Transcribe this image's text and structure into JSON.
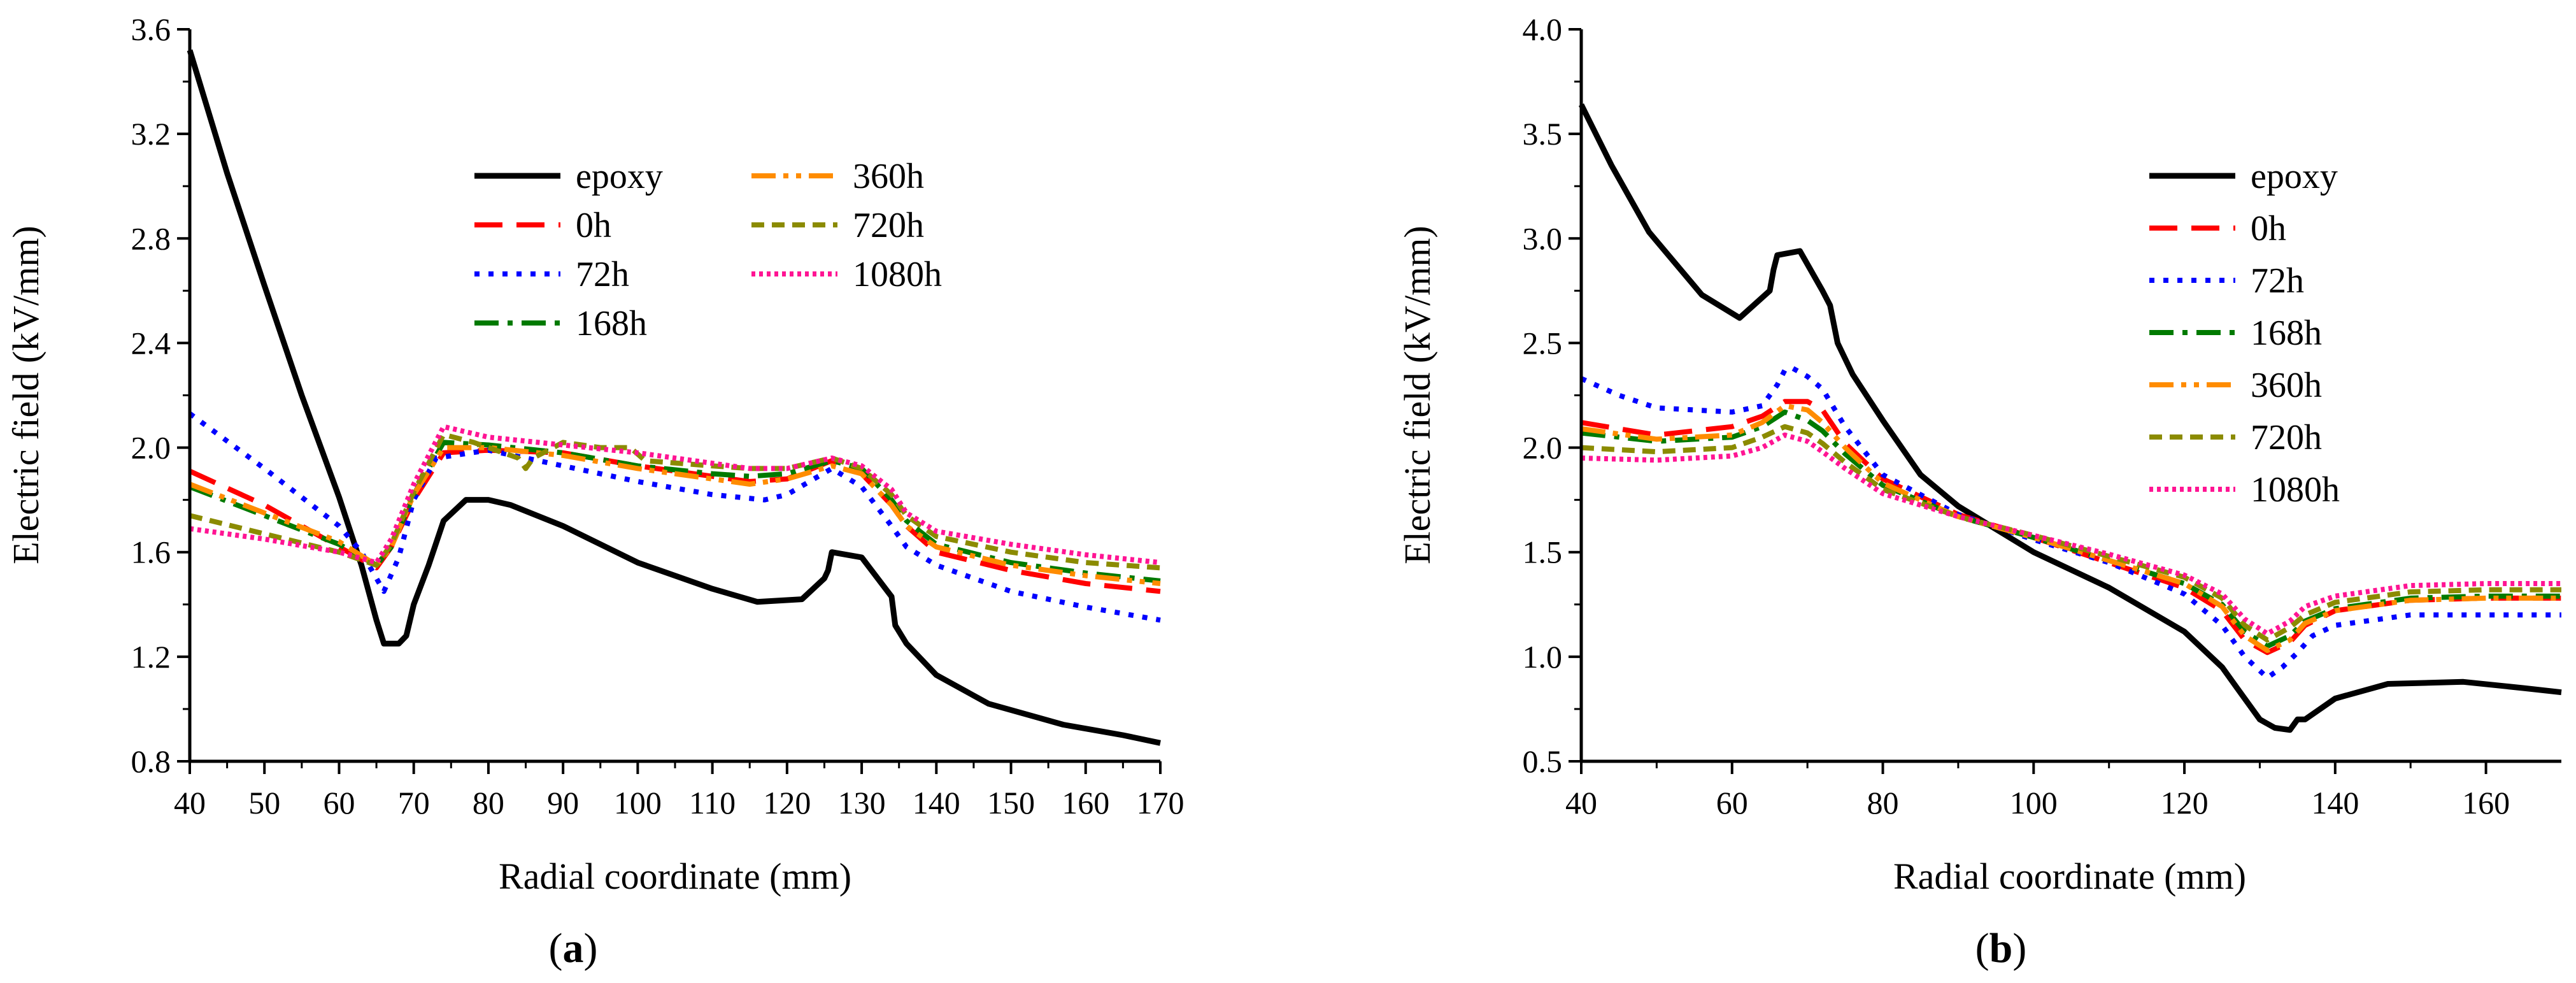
{
  "chart_data": [
    {
      "type": "line",
      "panel_label": "(a)",
      "xlabel": "Radial coordinate (mm)",
      "ylabel": "Electric field (kV/mm)",
      "xlim": [
        40,
        170
      ],
      "ylim": [
        0.8,
        3.6
      ],
      "xticks": [
        "40",
        "50",
        "60",
        "70",
        "80",
        "90",
        "100",
        "110",
        "120",
        "130",
        "140",
        "150",
        "160",
        "170"
      ],
      "yticks": [
        "0.8",
        "1.2",
        "1.6",
        "2.0",
        "2.4",
        "2.8",
        "3.2",
        "3.6"
      ],
      "legend_position": "top-center, two columns",
      "series": [
        {
          "name": "epoxy",
          "color": "#000000",
          "dash": "solid",
          "x": [
            40,
            45,
            50,
            55,
            60,
            63,
            65,
            66,
            68,
            69,
            70,
            72,
            74,
            77,
            80,
            83,
            90,
            100,
            110,
            116,
            122,
            125,
            125.5,
            126,
            130,
            134,
            134.5,
            136,
            140,
            147,
            157,
            165,
            170
          ],
          "y": [
            3.52,
            3.05,
            2.62,
            2.2,
            1.81,
            1.55,
            1.34,
            1.25,
            1.25,
            1.28,
            1.4,
            1.55,
            1.72,
            1.8,
            1.8,
            1.78,
            1.7,
            1.56,
            1.46,
            1.41,
            1.42,
            1.5,
            1.53,
            1.6,
            1.58,
            1.43,
            1.32,
            1.25,
            1.13,
            1.02,
            0.94,
            0.9,
            0.87
          ]
        },
        {
          "name": "0h",
          "color": "#ff0000",
          "dash": "dash",
          "x": [
            40,
            50,
            60,
            65,
            67,
            70,
            74,
            80,
            90,
            100,
            110,
            115,
            120,
            126,
            130,
            134,
            136,
            140,
            150,
            160,
            170
          ],
          "y": [
            1.91,
            1.78,
            1.62,
            1.54,
            1.62,
            1.8,
            1.98,
            1.99,
            1.98,
            1.93,
            1.89,
            1.87,
            1.88,
            1.95,
            1.9,
            1.78,
            1.7,
            1.6,
            1.53,
            1.48,
            1.45
          ]
        },
        {
          "name": "72h",
          "color": "#0000ff",
          "dash": "dot",
          "x": [
            40,
            50,
            60,
            63,
            66,
            68,
            70,
            73,
            80,
            90,
            100,
            110,
            117,
            120,
            126,
            130,
            134,
            136,
            140,
            150,
            160,
            170
          ],
          "y": [
            2.13,
            1.92,
            1.7,
            1.6,
            1.45,
            1.58,
            1.8,
            1.96,
            1.99,
            1.93,
            1.87,
            1.82,
            1.8,
            1.82,
            1.92,
            1.85,
            1.7,
            1.62,
            1.55,
            1.45,
            1.39,
            1.34
          ]
        },
        {
          "name": "168h",
          "color": "#007a00",
          "dash": "dashdot",
          "x": [
            40,
            50,
            60,
            65,
            67,
            70,
            74,
            80,
            90,
            100,
            110,
            115,
            120,
            126,
            130,
            134,
            136,
            140,
            150,
            160,
            170
          ],
          "y": [
            1.85,
            1.74,
            1.63,
            1.55,
            1.62,
            1.82,
            2.02,
            2.01,
            1.98,
            1.93,
            1.9,
            1.89,
            1.9,
            1.95,
            1.92,
            1.8,
            1.72,
            1.63,
            1.56,
            1.52,
            1.49
          ]
        },
        {
          "name": "360h",
          "color": "#ff8c00",
          "dash": "dashdotdot",
          "x": [
            40,
            50,
            60,
            65,
            67,
            70,
            74,
            80,
            90,
            100,
            110,
            115,
            120,
            126,
            130,
            134,
            136,
            140,
            150,
            160,
            170
          ],
          "y": [
            1.86,
            1.75,
            1.64,
            1.55,
            1.62,
            1.82,
            2.0,
            2.0,
            1.97,
            1.92,
            1.88,
            1.86,
            1.88,
            1.93,
            1.9,
            1.78,
            1.7,
            1.62,
            1.55,
            1.51,
            1.48
          ]
        },
        {
          "name": "720h",
          "color": "#8b8b00",
          "dash": "shortdash",
          "x": [
            40,
            50,
            60,
            65,
            67,
            70,
            74,
            78,
            84,
            85,
            86,
            90,
            95,
            99,
            101,
            110,
            115,
            120,
            126,
            130,
            134,
            136,
            140,
            150,
            160,
            170
          ],
          "y": [
            1.74,
            1.67,
            1.6,
            1.55,
            1.63,
            1.83,
            2.05,
            2.02,
            1.96,
            1.92,
            1.96,
            2.02,
            2.0,
            2.0,
            1.95,
            1.93,
            1.92,
            1.92,
            1.96,
            1.92,
            1.82,
            1.74,
            1.66,
            1.6,
            1.56,
            1.54
          ]
        },
        {
          "name": "1080h",
          "color": "#ff1493",
          "dash": "densedot",
          "x": [
            40,
            50,
            60,
            65,
            67,
            70,
            74,
            80,
            90,
            100,
            110,
            115,
            120,
            126,
            130,
            134,
            136,
            140,
            150,
            160,
            170
          ],
          "y": [
            1.69,
            1.65,
            1.6,
            1.56,
            1.65,
            1.86,
            2.08,
            2.04,
            2.01,
            1.98,
            1.94,
            1.92,
            1.92,
            1.96,
            1.93,
            1.84,
            1.75,
            1.68,
            1.63,
            1.59,
            1.56
          ]
        }
      ]
    },
    {
      "type": "line",
      "panel_label": "(b)",
      "xlabel": "Radial coordinate (mm)",
      "ylabel": "Electric field (kV/mm)",
      "xlim": [
        40,
        170
      ],
      "ylim": [
        0.5,
        4.0
      ],
      "xticks": [
        "40",
        "60",
        "80",
        "100",
        "120",
        "140",
        "160"
      ],
      "yticks": [
        "0.5",
        "1.0",
        "1.5",
        "2.0",
        "2.5",
        "3.0",
        "3.5",
        "4.0"
      ],
      "legend_position": "top-right",
      "series": [
        {
          "name": "epoxy",
          "color": "#000000",
          "dash": "solid",
          "x": [
            40,
            44,
            49,
            56,
            61,
            65,
            65.5,
            66,
            69,
            72,
            73,
            74,
            76,
            80,
            85,
            90,
            100,
            110,
            120,
            125,
            127,
            130,
            132,
            134,
            135,
            136,
            140,
            147,
            157,
            165,
            170
          ],
          "y": [
            3.64,
            3.35,
            3.03,
            2.73,
            2.62,
            2.75,
            2.85,
            2.92,
            2.94,
            2.75,
            2.68,
            2.5,
            2.35,
            2.13,
            1.87,
            1.72,
            1.5,
            1.33,
            1.12,
            0.95,
            0.85,
            0.7,
            0.66,
            0.65,
            0.7,
            0.7,
            0.8,
            0.87,
            0.88,
            0.85,
            0.83
          ]
        },
        {
          "name": "0h",
          "color": "#ff0000",
          "dash": "dash",
          "x": [
            40,
            50,
            60,
            64,
            67,
            70,
            72,
            75,
            80,
            90,
            100,
            110,
            120,
            125,
            128,
            131,
            134,
            136,
            140,
            150,
            160,
            170
          ],
          "y": [
            2.12,
            2.06,
            2.1,
            2.15,
            2.22,
            2.22,
            2.18,
            2.02,
            1.85,
            1.68,
            1.57,
            1.45,
            1.33,
            1.22,
            1.08,
            1.02,
            1.07,
            1.15,
            1.22,
            1.27,
            1.28,
            1.28
          ]
        },
        {
          "name": "72h",
          "color": "#0000ff",
          "dash": "dot",
          "x": [
            40,
            45,
            50,
            60,
            64,
            66,
            67,
            68,
            70,
            72,
            75,
            80,
            90,
            100,
            110,
            120,
            125,
            128,
            131,
            133,
            135,
            137,
            140,
            150,
            160,
            170
          ],
          "y": [
            2.33,
            2.25,
            2.19,
            2.17,
            2.2,
            2.3,
            2.37,
            2.38,
            2.34,
            2.28,
            2.1,
            1.87,
            1.68,
            1.56,
            1.45,
            1.3,
            1.15,
            1.0,
            0.9,
            0.95,
            1.02,
            1.1,
            1.15,
            1.2,
            1.2,
            1.2
          ]
        },
        {
          "name": "168h",
          "color": "#007a00",
          "dash": "dashdot",
          "x": [
            40,
            50,
            60,
            64,
            67,
            70,
            72,
            75,
            80,
            90,
            100,
            110,
            120,
            125,
            128,
            131,
            134,
            136,
            140,
            150,
            160,
            170
          ],
          "y": [
            2.07,
            2.03,
            2.05,
            2.1,
            2.17,
            2.13,
            2.08,
            1.97,
            1.82,
            1.67,
            1.57,
            1.46,
            1.35,
            1.25,
            1.12,
            1.05,
            1.1,
            1.17,
            1.23,
            1.28,
            1.29,
            1.29
          ]
        },
        {
          "name": "360h",
          "color": "#ff8c00",
          "dash": "dashdotdot",
          "x": [
            40,
            50,
            60,
            64,
            67,
            70,
            72,
            75,
            80,
            90,
            100,
            110,
            120,
            125,
            128,
            131,
            134,
            136,
            140,
            150,
            160,
            170
          ],
          "y": [
            2.09,
            2.04,
            2.06,
            2.12,
            2.2,
            2.18,
            2.12,
            2.0,
            1.83,
            1.67,
            1.57,
            1.46,
            1.35,
            1.24,
            1.1,
            1.03,
            1.08,
            1.16,
            1.22,
            1.27,
            1.28,
            1.28
          ]
        },
        {
          "name": "720h",
          "color": "#8b8b00",
          "dash": "shortdash",
          "x": [
            40,
            50,
            60,
            64,
            67,
            70,
            72,
            75,
            80,
            90,
            100,
            110,
            120,
            125,
            128,
            131,
            134,
            136,
            140,
            150,
            160,
            170
          ],
          "y": [
            2.0,
            1.98,
            2.0,
            2.05,
            2.1,
            2.07,
            2.02,
            1.93,
            1.8,
            1.67,
            1.58,
            1.48,
            1.38,
            1.28,
            1.15,
            1.08,
            1.14,
            1.2,
            1.26,
            1.31,
            1.32,
            1.32
          ]
        },
        {
          "name": "1080h",
          "color": "#ff1493",
          "dash": "densedot",
          "x": [
            40,
            50,
            60,
            64,
            67,
            70,
            72,
            75,
            80,
            90,
            100,
            110,
            120,
            125,
            128,
            131,
            134,
            136,
            140,
            150,
            160,
            170
          ],
          "y": [
            1.95,
            1.94,
            1.96,
            2.0,
            2.06,
            2.03,
            1.98,
            1.9,
            1.78,
            1.67,
            1.58,
            1.49,
            1.39,
            1.3,
            1.18,
            1.11,
            1.17,
            1.24,
            1.29,
            1.34,
            1.35,
            1.35
          ]
        }
      ]
    }
  ]
}
